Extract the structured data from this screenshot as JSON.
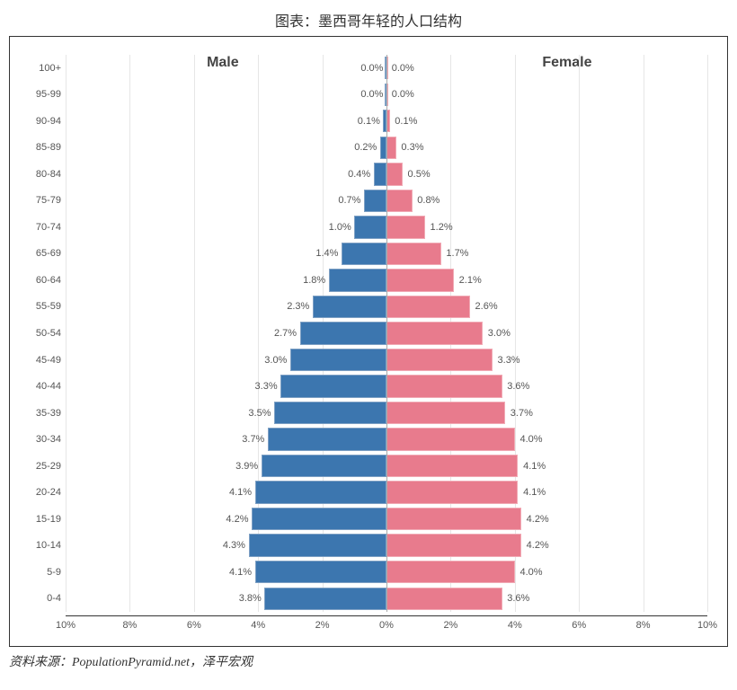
{
  "title": "图表：墨西哥年轻的人口结构",
  "source": "资料来源：PopulationPyramid.net，泽平宏观",
  "chart": {
    "type": "population-pyramid",
    "male_label": "Male",
    "female_label": "Female",
    "male_color": "#3c76af",
    "female_color": "#e87b8d",
    "male_border": "#7ea0c4",
    "female_border": "#f1aab5",
    "background_color": "#ffffff",
    "grid_color": "#e6e6e6",
    "label_fontsize": 11,
    "series_label_fontsize": 16,
    "x_max": 10,
    "x_ticks": [
      10,
      8,
      6,
      4,
      2,
      0,
      2,
      4,
      6,
      8,
      10
    ],
    "x_tick_labels": [
      "10%",
      "8%",
      "6%",
      "4%",
      "2%",
      "0%",
      "2%",
      "4%",
      "6%",
      "8%",
      "10%"
    ],
    "age_groups": [
      {
        "label": "100+",
        "male": 0.0,
        "female": 0.0,
        "male_s": "0.0%",
        "female_s": "0.0%"
      },
      {
        "label": "95-99",
        "male": 0.0,
        "female": 0.0,
        "male_s": "0.0%",
        "female_s": "0.0%"
      },
      {
        "label": "90-94",
        "male": 0.1,
        "female": 0.1,
        "male_s": "0.1%",
        "female_s": "0.1%"
      },
      {
        "label": "85-89",
        "male": 0.2,
        "female": 0.3,
        "male_s": "0.2%",
        "female_s": "0.3%"
      },
      {
        "label": "80-84",
        "male": 0.4,
        "female": 0.5,
        "male_s": "0.4%",
        "female_s": "0.5%"
      },
      {
        "label": "75-79",
        "male": 0.7,
        "female": 0.8,
        "male_s": "0.7%",
        "female_s": "0.8%"
      },
      {
        "label": "70-74",
        "male": 1.0,
        "female": 1.2,
        "male_s": "1.0%",
        "female_s": "1.2%"
      },
      {
        "label": "65-69",
        "male": 1.4,
        "female": 1.7,
        "male_s": "1.4%",
        "female_s": "1.7%"
      },
      {
        "label": "60-64",
        "male": 1.8,
        "female": 2.1,
        "male_s": "1.8%",
        "female_s": "2.1%"
      },
      {
        "label": "55-59",
        "male": 2.3,
        "female": 2.6,
        "male_s": "2.3%",
        "female_s": "2.6%"
      },
      {
        "label": "50-54",
        "male": 2.7,
        "female": 3.0,
        "male_s": "2.7%",
        "female_s": "3.0%"
      },
      {
        "label": "45-49",
        "male": 3.0,
        "female": 3.3,
        "male_s": "3.0%",
        "female_s": "3.3%"
      },
      {
        "label": "40-44",
        "male": 3.3,
        "female": 3.6,
        "male_s": "3.3%",
        "female_s": "3.6%"
      },
      {
        "label": "35-39",
        "male": 3.5,
        "female": 3.7,
        "male_s": "3.5%",
        "female_s": "3.7%"
      },
      {
        "label": "30-34",
        "male": 3.7,
        "female": 4.0,
        "male_s": "3.7%",
        "female_s": "4.0%"
      },
      {
        "label": "25-29",
        "male": 3.9,
        "female": 4.1,
        "male_s": "3.9%",
        "female_s": "4.1%"
      },
      {
        "label": "20-24",
        "male": 4.1,
        "female": 4.1,
        "male_s": "4.1%",
        "female_s": "4.1%"
      },
      {
        "label": "15-19",
        "male": 4.2,
        "female": 4.2,
        "male_s": "4.2%",
        "female_s": "4.2%"
      },
      {
        "label": "10-14",
        "male": 4.3,
        "female": 4.2,
        "male_s": "4.3%",
        "female_s": "4.2%"
      },
      {
        "label": "5-9",
        "male": 4.1,
        "female": 4.0,
        "male_s": "4.1%",
        "female_s": "4.0%"
      },
      {
        "label": "0-4",
        "male": 3.8,
        "female": 3.6,
        "male_s": "3.8%",
        "female_s": "3.6%"
      }
    ]
  }
}
